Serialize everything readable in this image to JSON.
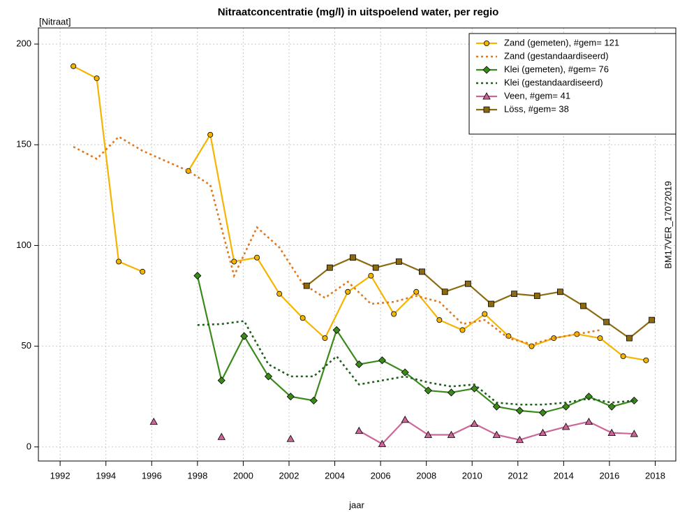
{
  "chart_data": {
    "type": "line",
    "title": "Nitraatconcentratie (mg/l) in uitspoelend water, per regio",
    "y_label": "[Nitraat]",
    "x_label": "jaar",
    "annotation": "BM17VER_17072019",
    "xlim": [
      1991.05,
      2018.9
    ],
    "xticks": [
      1992,
      1994,
      1996,
      1998,
      2000,
      2002,
      2004,
      2006,
      2008,
      2010,
      2012,
      2014,
      2016,
      2018
    ],
    "ylim": [
      -7,
      208
    ],
    "yticks": [
      0,
      50,
      100,
      150,
      200
    ],
    "grid": true,
    "legend": "top-right",
    "series": [
      {
        "name": "Zand (gemeten), #gem= 121",
        "color": "#f5b400",
        "marker": "circle",
        "linestyle": "solid",
        "x": [
          1992.58,
          1993.6,
          1994.56,
          1995.6,
          null,
          1997.6,
          1998.56,
          1999.6,
          2000.6,
          2001.58,
          2002.6,
          2003.57,
          2004.57,
          2005.58,
          2006.58,
          2007.56,
          2008.57,
          2009.58,
          2010.55,
          2011.59,
          2012.6,
          2013.57,
          2014.58,
          2015.59,
          2016.6,
          2017.6
        ],
        "values": [
          189,
          183,
          92,
          87,
          null,
          137,
          155,
          92,
          94,
          76,
          64,
          54,
          77,
          85,
          66,
          77,
          63,
          58,
          66,
          55,
          50,
          54,
          56,
          54,
          45,
          43
        ]
      },
      {
        "name": "Zand (gestandaardiseerd)",
        "color": "#e07820",
        "marker": "none",
        "linestyle": "dotted",
        "x": [
          1992.58,
          1993.6,
          1994.56,
          1995.6,
          1997.6,
          1998.56,
          1999.6,
          2000.6,
          2001.58,
          2002.6,
          2003.57,
          2004.57,
          2005.58,
          2006.58,
          2007.56,
          2008.57,
          2009.58,
          2010.55,
          2011.59,
          2012.6,
          2013.57,
          2014.58,
          2015.59
        ],
        "values": [
          149,
          143,
          154,
          147,
          137,
          130,
          85,
          109,
          99,
          81,
          74,
          82,
          71,
          72,
          75,
          72,
          61,
          63,
          54,
          51,
          54,
          56,
          58
        ]
      },
      {
        "name": "Klei (gemeten), #gem= 76",
        "color": "#3a8a1a",
        "marker": "diamond",
        "linestyle": "solid",
        "x": [
          1998.0,
          1999.05,
          2000.04,
          2001.1,
          2002.07,
          2003.08,
          2004.08,
          2005.06,
          2006.07,
          2007.07,
          2008.08,
          2009.09,
          2010.1,
          2011.07,
          2012.08,
          2013.09,
          2014.1,
          2015.1,
          2016.1,
          2017.08
        ],
        "values": [
          85,
          33,
          55,
          35,
          25,
          23,
          58,
          41,
          43,
          37,
          28,
          27,
          29,
          20,
          18,
          17,
          20,
          25,
          20,
          23
        ]
      },
      {
        "name": "Klei (gestandaardiseerd)",
        "color": "#1f5e1f",
        "marker": "none",
        "linestyle": "dotted",
        "x": [
          1998.0,
          1999.05,
          2000.04,
          2001.1,
          2002.07,
          2003.08,
          2004.08,
          2005.06,
          2006.07,
          2007.07,
          2008.08,
          2009.09,
          2010.1,
          2011.07,
          2012.08,
          2013.09,
          2014.1,
          2015.1,
          2016.1,
          2017.08
        ],
        "values": [
          60.5,
          61,
          62.5,
          41,
          35,
          35,
          45,
          31,
          33,
          35,
          32,
          30,
          31,
          22,
          21,
          21,
          22,
          24,
          22,
          23
        ]
      },
      {
        "name": "Veen, #gem= 41",
        "color": "#cc6699",
        "marker": "triangle",
        "linestyle": "solid",
        "x": [
          1996.09,
          null,
          1999.05,
          null,
          2002.07,
          null,
          2005.06,
          2006.07,
          2007.07,
          2008.08,
          2009.09,
          2010.1,
          2011.07,
          2012.08,
          2013.09,
          2014.1,
          2015.1,
          2016.1,
          2017.08
        ],
        "values": [
          12.5,
          null,
          5,
          null,
          4,
          null,
          8,
          1.5,
          13.5,
          6,
          6,
          11.5,
          6,
          3.5,
          7,
          10,
          12.5,
          7,
          6.5
        ]
      },
      {
        "name": "Löss, #gem= 38",
        "color": "#8c6a10",
        "marker": "square",
        "linestyle": "solid",
        "x": [
          2002.77,
          2003.78,
          2004.79,
          2005.79,
          2006.8,
          2007.81,
          2008.81,
          2009.82,
          2010.83,
          2011.84,
          2012.84,
          2013.85,
          2014.86,
          2015.87,
          2016.87,
          2017.85
        ],
        "values": [
          80,
          89,
          94,
          89,
          92,
          87,
          77,
          81,
          71,
          76,
          75,
          77,
          70,
          62,
          54,
          63
        ]
      }
    ]
  }
}
